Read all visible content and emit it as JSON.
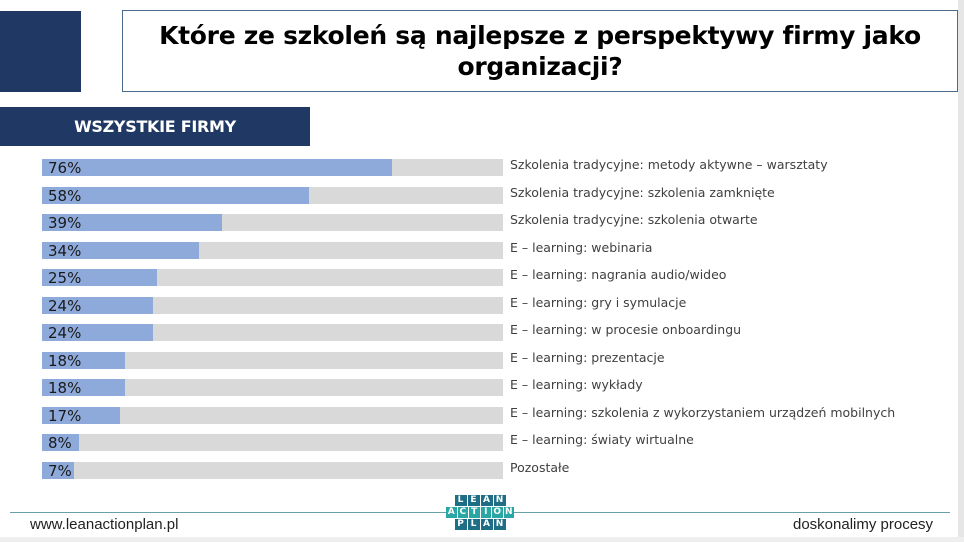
{
  "header": {
    "title": "Które ze szkoleń są najlepsze z perspektywy firmy jako organizacji?",
    "section_label": "WSZYSTKIE FIRMY"
  },
  "colors": {
    "navy": "#1f3864",
    "bar_fill": "#8eaadb",
    "bar_track": "#d9d9d9",
    "logo_teal": "#2aa7a5",
    "logo_dark": "#1e6f86"
  },
  "chart_data": {
    "type": "bar",
    "orientation": "horizontal",
    "title": "Które ze szkoleń są najlepsze z perspektywy firmy jako organizacji?",
    "subtitle": "WSZYSTKIE FIRMY",
    "xlabel": "",
    "ylabel": "",
    "xlim": [
      0,
      100
    ],
    "grid": false,
    "legend": "none",
    "categories": [
      "Szkolenia tradycyjne: metody aktywne – warsztaty",
      "Szkolenia tradycyjne: szkolenia zamknięte",
      "Szkolenia tradycyjne: szkolenia otwarte",
      "E – learning: webinaria",
      "E – learning: nagrania audio/wideo",
      "E – learning: gry i symulacje",
      "E – learning: w procesie onboardingu",
      "E – learning: prezentacje",
      "E – learning: wykłady",
      "E – learning: szkolenia z wykorzystaniem urządzeń mobilnych",
      "E – learning: światy wirtualne",
      "Pozostałe"
    ],
    "values": [
      76,
      58,
      39,
      34,
      25,
      24,
      24,
      18,
      18,
      17,
      8,
      7
    ],
    "value_labels": [
      "76%",
      "58%",
      "39%",
      "34%",
      "25%",
      "24%",
      "24%",
      "18%",
      "18%",
      "17%",
      "8%",
      "7%"
    ]
  },
  "footer": {
    "website": "www.leanactionplan.pl",
    "tagline": "doskonalimy procesy",
    "logo_rows": [
      [
        "L",
        "E",
        "A",
        "N"
      ],
      [
        "A",
        "C",
        "T",
        "I",
        "O",
        "N"
      ],
      [
        "P",
        "L",
        "A",
        "N"
      ]
    ]
  }
}
